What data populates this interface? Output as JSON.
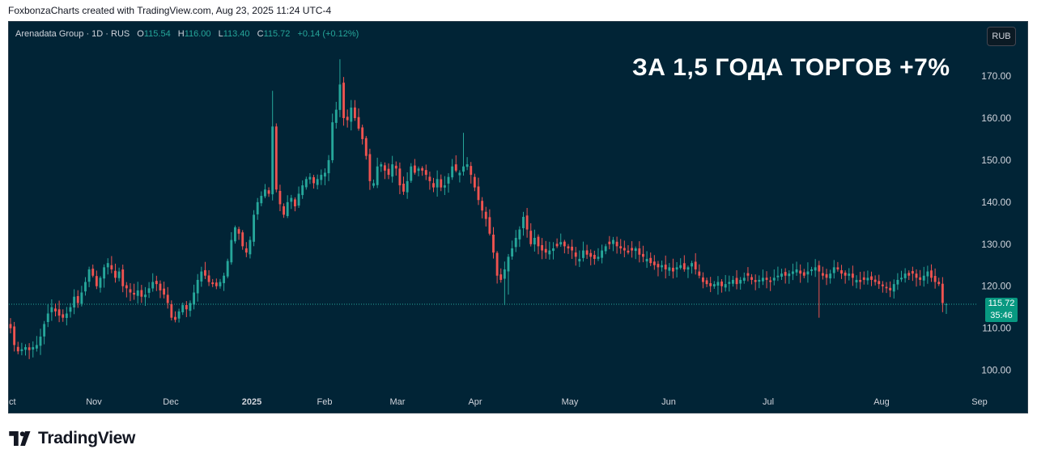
{
  "header": {
    "attribution": "FoxbonzaCharts created with TradingView.com, Aug 23, 2025 11:24 UTC-4"
  },
  "legend": {
    "symbol": "Arenadata Group · 1D · RUS",
    "open_label": "O",
    "open": "115.54",
    "high_label": "H",
    "high": "116.00",
    "low_label": "L",
    "low": "113.40",
    "close_label": "C",
    "close": "115.72",
    "change": "+0.14 (+0.12%)"
  },
  "currency_button": "RUB",
  "annotation": "ЗА 1,5 ГОДА ТОРГОВ +7%",
  "last_price": {
    "value": "115.72",
    "countdown": "35:46"
  },
  "footer": {
    "brand": "TradingView"
  },
  "colors": {
    "background": "#012436",
    "up": "#26a69a",
    "down": "#ef5350",
    "text": "#d1d4dc",
    "price_label": "#089981"
  },
  "chart_data": {
    "type": "candlestick",
    "title": "",
    "xlabel": "",
    "ylabel": "",
    "ylim": [
      94,
      176
    ],
    "y_ticks": [
      "100.00",
      "110.00",
      "120.00",
      "130.00",
      "140.00",
      "150.00",
      "160.00",
      "170.00"
    ],
    "x_ticks": [
      "Oct",
      "Nov",
      "Dec",
      "2025",
      "Feb",
      "Mar",
      "Apr",
      "May",
      "Jun",
      "Jul",
      "Aug",
      "Sep"
    ],
    "grid": false,
    "last_close": 115.72,
    "approximate_closes": [
      110.0,
      106.0,
      104.5,
      105.0,
      105.5,
      104.8,
      105.5,
      106.0,
      108.0,
      111.0,
      113.5,
      115.0,
      114.0,
      113.0,
      112.5,
      113.5,
      115.0,
      117.5,
      116.0,
      118.5,
      121.0,
      124.0,
      122.5,
      120.0,
      122.0,
      124.5,
      125.5,
      124.0,
      122.0,
      123.5,
      120.0,
      119.5,
      118.5,
      118.0,
      119.0,
      117.5,
      118.0,
      119.5,
      121.0,
      120.5,
      119.0,
      118.0,
      116.0,
      112.5,
      112.0,
      114.0,
      115.5,
      114.5,
      116.0,
      118.5,
      121.5,
      123.5,
      122.5,
      121.0,
      120.5,
      120.0,
      121.0,
      122.5,
      126.0,
      131.0,
      134.0,
      132.5,
      129.5,
      128.0,
      131.0,
      137.0,
      140.0,
      141.5,
      143.0,
      142.0,
      158.0,
      143.0,
      139.5,
      137.0,
      140.0,
      141.0,
      139.0,
      142.0,
      144.0,
      145.5,
      146.0,
      144.5,
      145.5,
      146.5,
      147.0,
      150.0,
      159.0,
      162.0,
      168.0,
      160.0,
      159.5,
      162.5,
      160.0,
      157.5,
      155.0,
      151.0,
      145.0,
      144.5,
      148.5,
      149.0,
      147.5,
      146.5,
      149.0,
      148.0,
      144.0,
      142.5,
      145.0,
      148.5,
      147.0,
      148.0,
      147.5,
      146.5,
      145.0,
      143.5,
      145.5,
      143.5,
      144.0,
      146.0,
      148.5,
      147.5,
      147.0,
      148.5,
      149.0,
      146.5,
      143.5,
      140.5,
      138.0,
      136.0,
      132.5,
      128.0,
      122.5,
      121.5,
      124.0,
      127.0,
      129.0,
      131.5,
      133.5,
      136.5,
      133.5,
      130.0,
      131.5,
      129.5,
      128.5,
      128.0,
      128.5,
      129.0,
      129.5,
      130.5,
      129.5,
      129.0,
      128.5,
      127.0,
      126.5,
      128.5,
      127.5,
      127.0,
      126.5,
      127.0,
      128.5,
      129.5,
      130.0,
      131.0,
      129.5,
      129.0,
      128.5,
      128.0,
      128.5,
      129.0,
      127.5,
      127.0,
      126.5,
      125.5,
      125.0,
      124.5,
      125.0,
      124.0,
      124.5,
      123.5,
      124.5,
      125.0,
      124.0,
      124.5,
      125.5,
      124.0,
      122.5,
      121.0,
      120.5,
      120.0,
      120.5,
      121.0,
      120.0,
      120.5,
      121.0,
      121.5,
      120.5,
      121.5,
      122.0,
      122.5,
      121.5,
      121.0,
      121.5,
      122.0,
      121.5,
      121.0,
      122.0,
      122.5,
      123.0,
      122.5,
      123.0,
      123.5,
      124.0,
      123.0,
      122.5,
      123.5,
      124.0,
      124.5,
      123.5,
      122.5,
      122.0,
      123.0,
      124.5,
      124.0,
      123.0,
      122.5,
      123.0,
      122.0,
      121.5,
      121.0,
      121.5,
      122.0,
      121.5,
      121.0,
      120.5,
      120.0,
      119.5,
      119.0,
      120.5,
      121.5,
      122.0,
      123.0,
      122.5,
      123.0,
      122.0,
      121.5,
      122.5,
      123.5,
      122.0,
      121.0,
      120.5,
      116.0,
      115.72
    ]
  }
}
